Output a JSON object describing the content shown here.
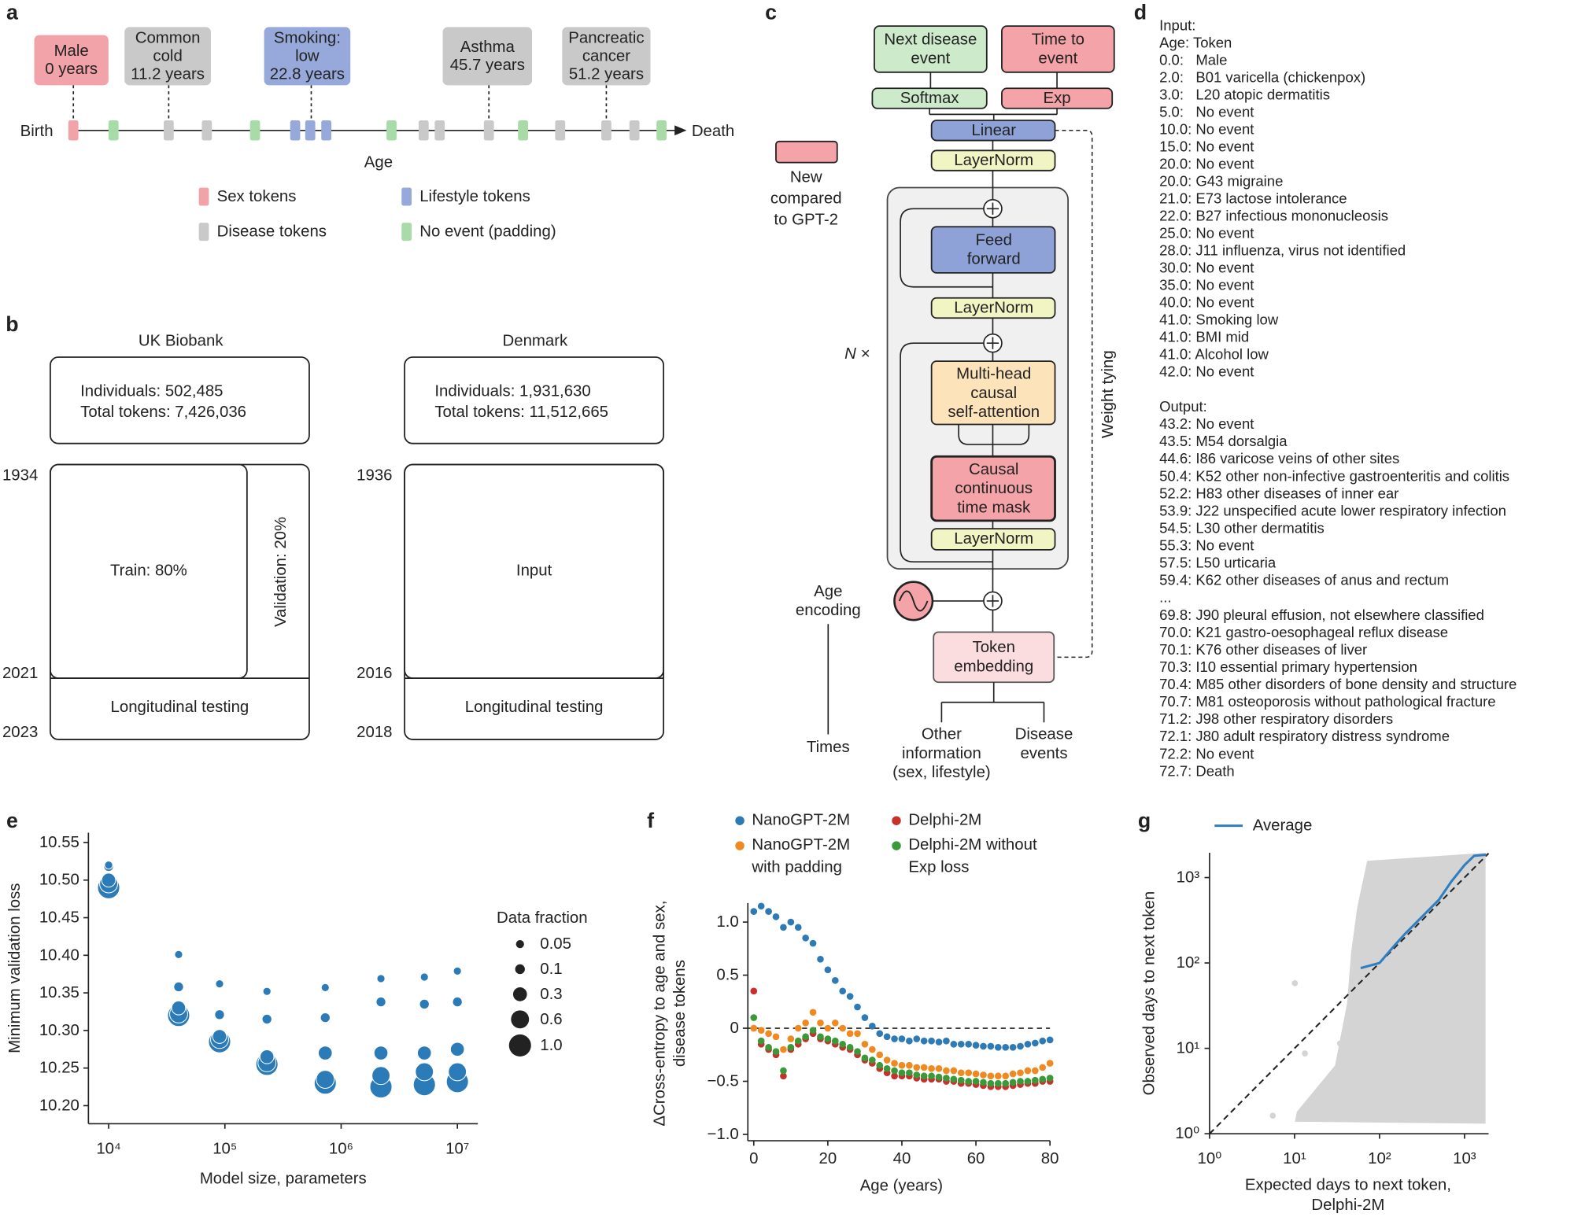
{
  "panel_labels": [
    "a",
    "b",
    "c",
    "d",
    "e",
    "f",
    "g"
  ],
  "panel_a": {
    "callouts": [
      [
        "Male",
        "0 years"
      ],
      [
        "Common",
        "cold",
        "11.2 years"
      ],
      [
        "Smoking:",
        "low",
        "22.8 years"
      ],
      [
        "Asthma",
        "45.7 years"
      ],
      [
        "Pancreatic",
        "cancer",
        "51.2 years"
      ]
    ],
    "start_label": "Birth",
    "end_label": "Death",
    "axis_label": "Age",
    "legend": [
      {
        "name": "Sex tokens",
        "color": "#f2a3a9"
      },
      {
        "name": "Lifestyle tokens",
        "color": "#97a8da"
      },
      {
        "name": "Disease tokens",
        "color": "#c9c9c9"
      },
      {
        "name": "No event (padding)",
        "color": "#a8dba8"
      }
    ]
  },
  "panel_b": {
    "cohorts": [
      {
        "name": "UK Biobank",
        "individuals": "Individuals: 502,485",
        "tokens": "Total tokens: 7,426,036",
        "years": [
          "1934",
          "2021",
          "2023"
        ],
        "main_split": "Train: 80%",
        "side_split": "Validation: 20%",
        "testing": "Longitudinal testing"
      },
      {
        "name": "Denmark",
        "individuals": "Individuals: 1,931,630",
        "tokens": "Total tokens: 11,512,665",
        "years": [
          "1936",
          "2016",
          "2018"
        ],
        "main_split": "Input",
        "testing": "Longitudinal testing"
      }
    ]
  },
  "panel_c": {
    "outputs": [
      [
        "Next disease",
        "event"
      ],
      [
        "Time to",
        "event"
      ]
    ],
    "heads": [
      "Softmax",
      "Exp"
    ],
    "linear": "Linear",
    "layernorm_top": "LayerNorm",
    "feed_forward": [
      "Feed",
      "forward"
    ],
    "layernorm_mid": "LayerNorm",
    "attention": [
      "Multi-head",
      "causal",
      "self-attention"
    ],
    "mask": [
      "Causal",
      "continuous",
      "time mask"
    ],
    "layernorm_bottom": "LayerNorm",
    "repeat": "N ×",
    "weight_tying": "Weight tying",
    "token_embedding": [
      "Token",
      "embedding"
    ],
    "age_encoding": [
      "Age",
      "encoding"
    ],
    "inputs": [
      [
        "Times"
      ],
      [
        "Other",
        "information",
        "(sex, lifestyle)"
      ],
      [
        "Disease",
        "events"
      ]
    ],
    "new_legend": [
      "New",
      "compared",
      "to GPT-2"
    ]
  },
  "panel_d": {
    "input": [
      "Input:",
      "Age: Token",
      "0.0:   Male",
      "2.0:   B01 varicella (chickenpox)",
      "3.0:   L20 atopic dermatitis",
      "5.0:   No event",
      "10.0: No event",
      "15.0: No event",
      "20.0: No event",
      "20.0: G43 migraine",
      "21.0: E73 lactose intolerance",
      "22.0: B27 infectious mononucleosis",
      "25.0: No event",
      "28.0: J11 influenza, virus not identified",
      "30.0: No event",
      "35.0: No event",
      "40.0: No event",
      "41.0: Smoking low",
      "41.0: BMI mid",
      "41.0: Alcohol low",
      "42.0: No event"
    ],
    "output": [
      "Output:",
      "43.2: No event",
      "43.5: M54 dorsalgia",
      "44.6: I86 varicose veins of other sites",
      "50.4: K52 other non-infective gastroenteritis and colitis",
      "52.2: H83 other diseases of inner ear",
      "53.9: J22 unspecified acute lower respiratory infection",
      "54.5: L30 other dermatitis",
      "55.3: No event",
      "57.5: L50 urticaria",
      "59.4: K62 other diseases of anus and rectum",
      "...",
      "69.8: J90 pleural effusion, not elsewhere classified",
      "70.0: K21 gastro-oesophageal reflux disease",
      "70.1: K76 other diseases of liver",
      "70.3: I10 essential primary hypertension",
      "70.4: M85 other disorders of bone density and structure",
      "70.7: M81 osteoporosis without pathological fracture",
      "71.2: J98 other respiratory disorders",
      "72.1: J80 adult respiratory distress syndrome",
      "72.2: No event",
      "72.7: Death"
    ]
  },
  "chart_data": [
    {
      "type": "bubble",
      "xlabel": "Model size, parameters",
      "ylabel": "Minimum validation loss",
      "legend_title": "Data fraction",
      "xscale": "log",
      "xlim": [
        6700,
        15000000
      ],
      "ylim": [
        10.176,
        10.563
      ],
      "xticks": [
        {
          "value": 10000,
          "label": "10⁴"
        },
        {
          "value": 100000,
          "label": "10⁵"
        },
        {
          "value": 1000000,
          "label": "10⁶"
        },
        {
          "value": 10000000,
          "label": "10⁷"
        }
      ],
      "yticks": [
        {
          "value": 10.2,
          "label": "10.20"
        },
        10.25,
        {
          "value": 10.3,
          "label": "10.30"
        },
        10.35,
        {
          "value": 10.4,
          "label": "10.40"
        },
        10.45,
        {
          "value": 10.5,
          "label": "10.50"
        },
        10.55
      ],
      "x": [
        10000,
        40000,
        90000,
        230000,
        730000,
        2200000,
        5200000,
        10000000
      ],
      "series": [
        {
          "name": "0.05",
          "size": 0.05,
          "color": "#2b7bb9",
          "values": [
            10.52,
            10.401,
            10.362,
            10.352,
            10.357,
            10.369,
            10.371,
            10.379
          ]
        },
        {
          "name": "0.1",
          "size": 0.1,
          "color": "#2b7bb9",
          "values": [
            10.518,
            10.358,
            10.321,
            10.315,
            10.317,
            10.338,
            10.335,
            10.338
          ]
        },
        {
          "name": "0.3",
          "size": 0.3,
          "color": "#2b7bb9",
          "values": [
            10.5,
            10.33,
            10.292,
            10.265,
            10.27,
            10.27,
            10.27,
            10.275
          ]
        },
        {
          "name": "0.6",
          "size": 0.6,
          "color": "#2b7bb9",
          "values": [
            10.495,
            10.322,
            10.288,
            10.257,
            10.235,
            10.24,
            10.245,
            10.245
          ]
        },
        {
          "name": "1.0",
          "size": 1.0,
          "color": "#2b7bb9",
          "values": [
            10.49,
            10.32,
            10.285,
            10.255,
            10.23,
            10.225,
            10.228,
            10.232
          ]
        }
      ]
    },
    {
      "type": "scatter",
      "xlabel": "Age (years)",
      "ylabel": "ΔCross-entropy to age and sex, disease tokens",
      "xlim": [
        -1.6,
        80
      ],
      "ylim": [
        -1.06,
        1.18
      ],
      "xticks": [
        0,
        20,
        40,
        60,
        80
      ],
      "yticks": [
        {
          "value": -1,
          "label": "−1.0"
        },
        {
          "value": -0.5,
          "label": "−0.5"
        },
        0,
        0.5,
        {
          "value": 1,
          "label": "1.0"
        }
      ],
      "hline": 0,
      "x": [
        0,
        2,
        4,
        6,
        8,
        10,
        12,
        14,
        16,
        18,
        20,
        22,
        24,
        26,
        28,
        30,
        32,
        34,
        36,
        38,
        40,
        42,
        44,
        46,
        48,
        50,
        52,
        54,
        56,
        58,
        60,
        62,
        64,
        66,
        68,
        70,
        72,
        74,
        76,
        78,
        80
      ],
      "series": [
        {
          "name": "NanoGPT-2M",
          "color": "#2e7ab5",
          "values": [
            1.1,
            1.15,
            1.1,
            1.05,
            0.95,
            1.0,
            0.95,
            0.85,
            0.8,
            0.65,
            0.55,
            0.45,
            0.35,
            0.3,
            0.2,
            0.1,
            0.02,
            -0.05,
            -0.08,
            -0.1,
            -0.1,
            -0.12,
            -0.1,
            -0.12,
            -0.12,
            -0.13,
            -0.12,
            -0.15,
            -0.15,
            -0.15,
            -0.16,
            -0.17,
            -0.17,
            -0.18,
            -0.18,
            -0.18,
            -0.17,
            -0.15,
            -0.14,
            -0.12,
            -0.11
          ]
        },
        {
          "name": "NanoGPT-2M with padding",
          "color": "#ef8a22",
          "values": [
            0.0,
            -0.02,
            -0.05,
            -0.08,
            -0.2,
            -0.1,
            0.0,
            0.05,
            0.15,
            0.05,
            0.0,
            0.05,
            0.0,
            -0.05,
            -0.05,
            -0.15,
            -0.2,
            -0.25,
            -0.3,
            -0.33,
            -0.35,
            -0.35,
            -0.37,
            -0.37,
            -0.38,
            -0.38,
            -0.4,
            -0.4,
            -0.42,
            -0.42,
            -0.43,
            -0.44,
            -0.45,
            -0.45,
            -0.45,
            -0.43,
            -0.42,
            -0.4,
            -0.4,
            -0.37,
            -0.33
          ]
        },
        {
          "name": "Delphi-2M",
          "color": "#c8302c",
          "values": [
            0.35,
            -0.15,
            -0.2,
            -0.25,
            -0.45,
            -0.2,
            -0.15,
            -0.1,
            -0.05,
            -0.1,
            -0.12,
            -0.15,
            -0.18,
            -0.2,
            -0.25,
            -0.3,
            -0.33,
            -0.38,
            -0.42,
            -0.45,
            -0.45,
            -0.45,
            -0.47,
            -0.48,
            -0.48,
            -0.48,
            -0.5,
            -0.5,
            -0.52,
            -0.52,
            -0.53,
            -0.54,
            -0.55,
            -0.55,
            -0.55,
            -0.54,
            -0.53,
            -0.52,
            -0.52,
            -0.5,
            -0.5
          ]
        },
        {
          "name": "Delphi-2M without Exp loss",
          "color": "#3a9a3a",
          "values": [
            0.1,
            -0.12,
            -0.18,
            -0.22,
            -0.4,
            -0.18,
            -0.12,
            -0.08,
            -0.02,
            -0.08,
            -0.1,
            -0.12,
            -0.15,
            -0.18,
            -0.22,
            -0.28,
            -0.3,
            -0.35,
            -0.38,
            -0.4,
            -0.42,
            -0.42,
            -0.44,
            -0.45,
            -0.45,
            -0.46,
            -0.47,
            -0.48,
            -0.49,
            -0.5,
            -0.5,
            -0.51,
            -0.52,
            -0.52,
            -0.52,
            -0.51,
            -0.5,
            -0.5,
            -0.49,
            -0.48,
            -0.47
          ]
        }
      ]
    },
    {
      "type": "line",
      "xlabel": "Expected days to next token, Delphi-2M",
      "ylabel": "Observed days to next token",
      "xscale": "log",
      "yscale": "log",
      "xlim": [
        1,
        1920
      ],
      "ylim": [
        1,
        1950
      ],
      "xticks": [
        {
          "value": 1,
          "label": "10⁰"
        },
        {
          "value": 10,
          "label": "10¹"
        },
        {
          "value": 100,
          "label": "10²"
        },
        {
          "value": 1000,
          "label": "10³"
        }
      ],
      "yticks": [
        {
          "value": 1,
          "label": "10⁰"
        },
        {
          "value": 10,
          "label": "10¹"
        },
        {
          "value": 100,
          "label": "10²"
        },
        {
          "value": 1000,
          "label": "10³"
        }
      ],
      "series": [
        {
          "name": "Average",
          "color": "#2f7fc0",
          "x": [
            60,
            100,
            150,
            200,
            300,
            500,
            700,
            1000,
            1300,
            1800
          ],
          "values": [
            87,
            100,
            160,
            220,
            330,
            550,
            900,
            1400,
            1800,
            1850
          ]
        }
      ]
    }
  ]
}
